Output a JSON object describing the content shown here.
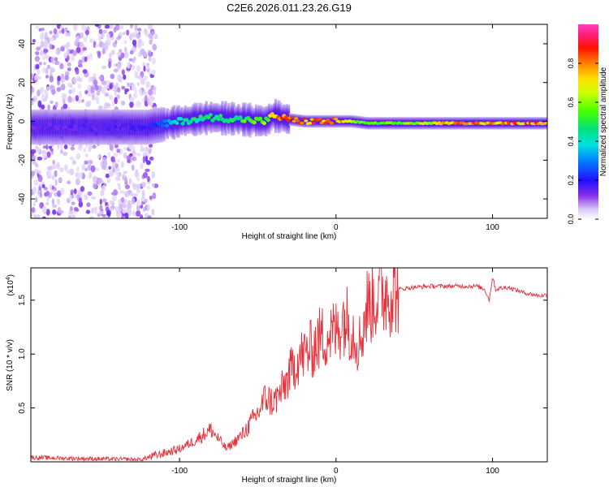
{
  "title": "C2E6.2026.011.23.26.G19",
  "chart_data": [
    {
      "type": "heatmap",
      "title": "C2E6.2026.011.23.26.G19",
      "xlabel": "Height of straight line (km)",
      "ylabel": "Frequency (Hz)",
      "xlim": [
        -195,
        135
      ],
      "ylim": [
        -50,
        50
      ],
      "xticks": [
        -100,
        0,
        100
      ],
      "yticks": [
        -40,
        -20,
        0,
        20,
        40
      ],
      "colorbar": {
        "label": "Normalized spectral amplitude",
        "range": [
          0.0,
          1.0
        ],
        "ticks": [
          0.0,
          0.2,
          0.4,
          0.6,
          0.8
        ]
      },
      "ridge": {
        "x": [
          -195,
          -120,
          -100,
          -80,
          -60,
          -45,
          -40,
          -35,
          -30,
          -20,
          -10,
          0,
          10,
          20,
          40,
          60,
          80,
          100,
          120,
          135
        ],
        "freq": [
          -3,
          -3,
          0,
          2,
          1,
          0,
          3,
          2,
          1,
          0,
          0,
          0,
          0,
          -1,
          -1,
          -1,
          -1,
          -1,
          -1,
          -1
        ],
        "amplitude": [
          0.15,
          0.18,
          0.45,
          0.5,
          0.55,
          0.6,
          0.75,
          0.85,
          0.85,
          0.85,
          0.9,
          0.85,
          0.65,
          0.6,
          0.6,
          0.7,
          0.9,
          0.8,
          0.85,
          0.85
        ]
      },
      "grid": false
    },
    {
      "type": "line",
      "xlabel": "Height of straight line (km)",
      "ylabel": "SNR (10 * v/v)",
      "yscale_label": "(x10",
      "yscale_exp": "4",
      "xlim": [
        -195,
        135
      ],
      "ylim": [
        0,
        1.8
      ],
      "xticks": [
        -100,
        0,
        100
      ],
      "yticks": [
        0.5,
        1.0,
        1.5
      ],
      "ytick_labels": [
        "0.5",
        "1.0",
        "1.5"
      ],
      "series": [
        {
          "name": "SNR",
          "color": "#e8303a",
          "x": [
            -195,
            -160,
            -125,
            -115,
            -100,
            -90,
            -80,
            -70,
            -60,
            -50,
            -45,
            -40,
            -35,
            -30,
            -25,
            -20,
            -15,
            -10,
            -5,
            0,
            5,
            10,
            15,
            20,
            25,
            30,
            40,
            50,
            60,
            70,
            80,
            90,
            95,
            98,
            100,
            102,
            105,
            110,
            120,
            130,
            135
          ],
          "y": [
            0.04,
            0.03,
            0.02,
            0.06,
            0.12,
            0.2,
            0.3,
            0.12,
            0.25,
            0.45,
            0.6,
            0.55,
            0.65,
            0.8,
            0.95,
            1.0,
            1.05,
            1.15,
            1.18,
            1.2,
            1.35,
            1.25,
            1.1,
            1.45,
            1.52,
            1.57,
            1.6,
            1.62,
            1.63,
            1.63,
            1.63,
            1.63,
            1.6,
            1.5,
            1.72,
            1.6,
            1.61,
            1.62,
            1.57,
            1.54,
            1.55
          ]
        }
      ],
      "grid": false
    }
  ]
}
